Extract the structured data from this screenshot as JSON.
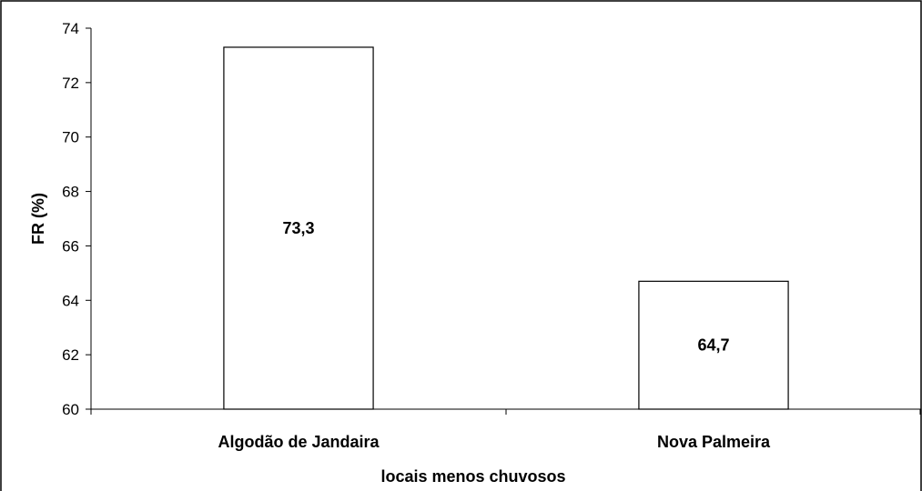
{
  "chart_data": {
    "type": "bar",
    "categories": [
      "Algodão de Jandaira",
      "Nova Palmeira"
    ],
    "values": [
      73.3,
      64.7
    ],
    "data_labels": [
      "73,3",
      "64,7"
    ],
    "title": "",
    "xlabel": "locais menos chuvosos",
    "ylabel": "FR (%)",
    "ylim": [
      60,
      74
    ],
    "yticks": [
      60,
      62,
      64,
      66,
      68,
      70,
      72,
      74
    ],
    "grid": false,
    "legend": "none",
    "colors": {
      "bar_fill": "#ffffff",
      "bar_stroke": "#000000",
      "axis": "#000000"
    }
  }
}
